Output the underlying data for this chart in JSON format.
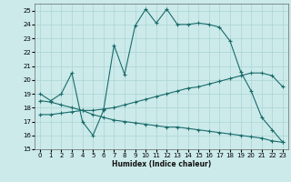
{
  "xlabel": "Humidex (Indice chaleur)",
  "bg_color": "#cceaea",
  "grid_color": "#aad4d4",
  "line_color": "#1a6b6b",
  "ylim": [
    15,
    25.5
  ],
  "xlim": [
    -0.5,
    23.5
  ],
  "yticks": [
    15,
    16,
    17,
    18,
    19,
    20,
    21,
    22,
    23,
    24,
    25
  ],
  "xticks": [
    0,
    1,
    2,
    3,
    4,
    5,
    6,
    7,
    8,
    9,
    10,
    11,
    12,
    13,
    14,
    15,
    16,
    17,
    18,
    19,
    20,
    21,
    22,
    23
  ],
  "line1_x": [
    0,
    1,
    2,
    3,
    4,
    5,
    6,
    7,
    8,
    9,
    10,
    11,
    12,
    13,
    14,
    15,
    16,
    17,
    18,
    19,
    20,
    21,
    22,
    23
  ],
  "line1_y": [
    19.0,
    18.5,
    19.0,
    20.5,
    17.0,
    16.0,
    17.8,
    22.5,
    20.4,
    23.9,
    25.1,
    24.1,
    25.1,
    24.0,
    24.0,
    24.1,
    24.0,
    23.8,
    22.8,
    20.6,
    19.2,
    17.3,
    16.4,
    15.5
  ],
  "line2_x": [
    0,
    1,
    2,
    3,
    4,
    5,
    6,
    7,
    8,
    9,
    10,
    11,
    12,
    13,
    14,
    15,
    16,
    17,
    18,
    19,
    20,
    21,
    22,
    23
  ],
  "line2_y": [
    17.5,
    17.5,
    17.6,
    17.7,
    17.8,
    17.8,
    17.9,
    18.0,
    18.2,
    18.4,
    18.6,
    18.8,
    19.0,
    19.2,
    19.4,
    19.5,
    19.7,
    19.9,
    20.1,
    20.3,
    20.5,
    20.5,
    20.3,
    19.5
  ],
  "line3_x": [
    0,
    1,
    2,
    3,
    4,
    5,
    6,
    7,
    8,
    9,
    10,
    11,
    12,
    13,
    14,
    15,
    16,
    17,
    18,
    19,
    20,
    21,
    22,
    23
  ],
  "line3_y": [
    18.5,
    18.4,
    18.2,
    18.0,
    17.8,
    17.5,
    17.3,
    17.1,
    17.0,
    16.9,
    16.8,
    16.7,
    16.6,
    16.6,
    16.5,
    16.4,
    16.3,
    16.2,
    16.1,
    16.0,
    15.9,
    15.8,
    15.6,
    15.5
  ]
}
